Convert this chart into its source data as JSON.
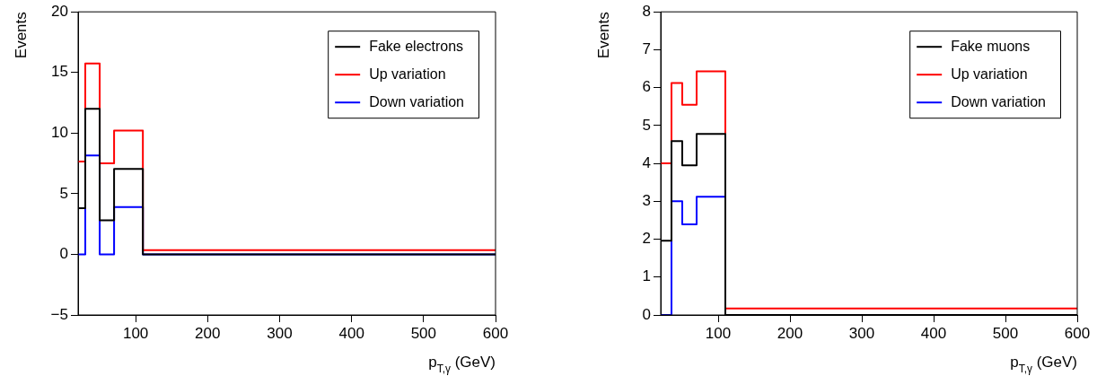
{
  "chart_data": [
    {
      "type": "histogram",
      "xlabel": "p$_{T,γ}$ (GeV)",
      "ylabel": "Events",
      "bins": [
        20,
        30,
        50,
        70,
        110,
        600
      ],
      "xlim": [
        20,
        600
      ],
      "xticks": [
        100,
        200,
        300,
        400,
        500,
        600
      ],
      "ylim": [
        -5,
        20
      ],
      "yticks": [
        -5,
        0,
        5,
        10,
        15,
        20
      ],
      "legend": "top right",
      "grid": false,
      "series": [
        {
          "name": "Fake electrons",
          "color": "#000000",
          "values": [
            3.8,
            12.0,
            2.8,
            7.05,
            0
          ]
        },
        {
          "name": "Up variation",
          "color": "#ff0000",
          "values": [
            7.65,
            15.75,
            7.5,
            10.2,
            0.35
          ]
        },
        {
          "name": "Down variation",
          "color": "#0000ff",
          "values": [
            0,
            8.15,
            0,
            3.9,
            0
          ]
        }
      ]
    },
    {
      "type": "histogram",
      "xlabel": "p$_{T,γ}$ (GeV)",
      "ylabel": "Events",
      "bins": [
        20,
        35,
        50,
        70,
        110,
        600
      ],
      "xlim": [
        20,
        600
      ],
      "xticks": [
        100,
        200,
        300,
        400,
        500,
        600
      ],
      "ylim": [
        0,
        8
      ],
      "yticks": [
        0,
        1,
        2,
        3,
        4,
        5,
        6,
        7,
        8
      ],
      "legend": "top right",
      "grid": false,
      "series": [
        {
          "name": "Fake muons",
          "color": "#000000",
          "values": [
            1.96,
            4.59,
            3.95,
            4.78,
            0
          ]
        },
        {
          "name": "Up variation",
          "color": "#ff0000",
          "values": [
            4.0,
            6.12,
            5.55,
            6.43,
            0.17
          ]
        },
        {
          "name": "Down variation",
          "color": "#0000ff",
          "values": [
            0,
            3.0,
            2.39,
            3.12,
            0
          ]
        }
      ]
    }
  ]
}
